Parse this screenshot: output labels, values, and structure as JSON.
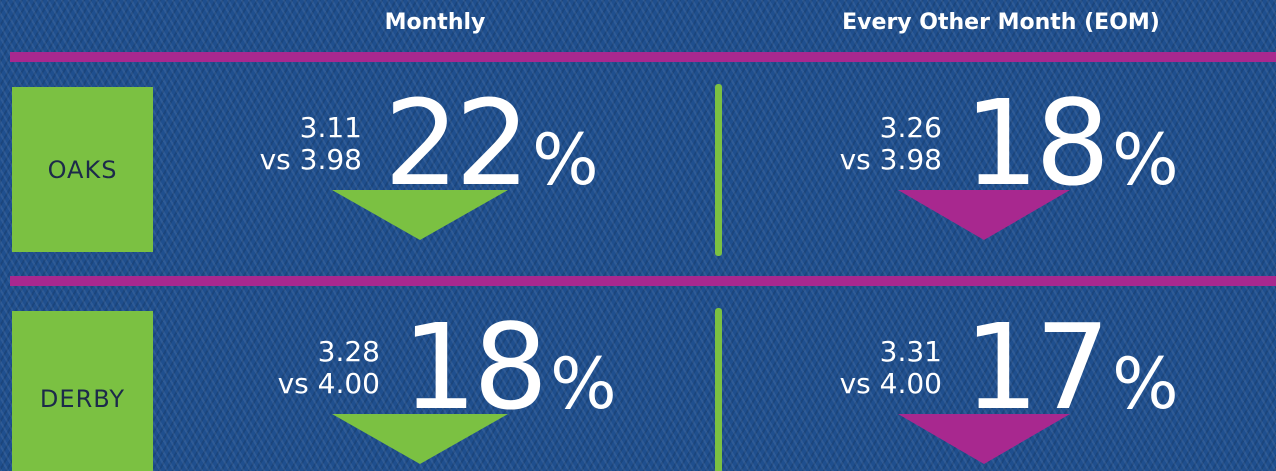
{
  "columns": [
    "Monthly",
    "Every Other Month (EOM)"
  ],
  "rows": [
    {
      "label": "OAKS",
      "cells": [
        {
          "value": "3.11",
          "compare": "vs 3.98",
          "change": "22",
          "unit": "%"
        },
        {
          "value": "3.26",
          "compare": "vs 3.98",
          "change": "18",
          "unit": "%"
        }
      ]
    },
    {
      "label": "DERBY",
      "cells": [
        {
          "value": "3.28",
          "compare": "vs 4.00",
          "change": "18",
          "unit": "%"
        },
        {
          "value": "3.31",
          "compare": "vs 4.00",
          "change": "17",
          "unit": "%"
        }
      ]
    }
  ]
}
